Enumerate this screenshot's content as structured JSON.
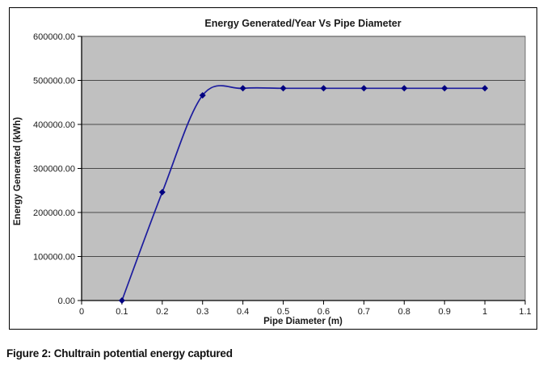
{
  "figure": {
    "caption": "Figure 2: Chultrain potential energy captured"
  },
  "chart_data": {
    "type": "line",
    "title": "Energy Generated/Year Vs Pipe Diameter",
    "xlabel": "Pipe Diameter (m)",
    "ylabel": "Energy Generated (kWh)",
    "x": [
      0.1,
      0.2,
      0.3,
      0.4,
      0.5,
      0.6,
      0.7,
      0.8,
      0.9,
      1.0
    ],
    "y": [
      0,
      246000,
      466000,
      482000,
      482000,
      482000,
      482000,
      482000,
      482000,
      482000
    ],
    "xlim": [
      0,
      1.1
    ],
    "ylim": [
      0,
      600000
    ],
    "x_ticks": [
      0,
      0.1,
      0.2,
      0.3,
      0.4,
      0.5,
      0.6,
      0.7,
      0.8,
      0.9,
      1.0,
      1.1
    ],
    "x_tick_labels": [
      "0",
      "0.1",
      "0.2",
      "0.3",
      "0.4",
      "0.5",
      "0.6",
      "0.7",
      "0.8",
      "0.9",
      "1",
      "1.1"
    ],
    "y_ticks": [
      0,
      100000,
      200000,
      300000,
      400000,
      500000,
      600000
    ],
    "y_tick_labels": [
      "0.00",
      "100000.00",
      "200000.00",
      "300000.00",
      "400000.00",
      "500000.00",
      "600000.00"
    ],
    "grid": true,
    "legend": "none",
    "smooth": true,
    "marker": "diamond",
    "line_color": "#1c1c9e",
    "marker_color": "#000080",
    "plot_bg": "#c0c0c0",
    "grid_color": "#4a4a4a",
    "axis_color": "#000000",
    "text_color": "#1a1a1a"
  }
}
